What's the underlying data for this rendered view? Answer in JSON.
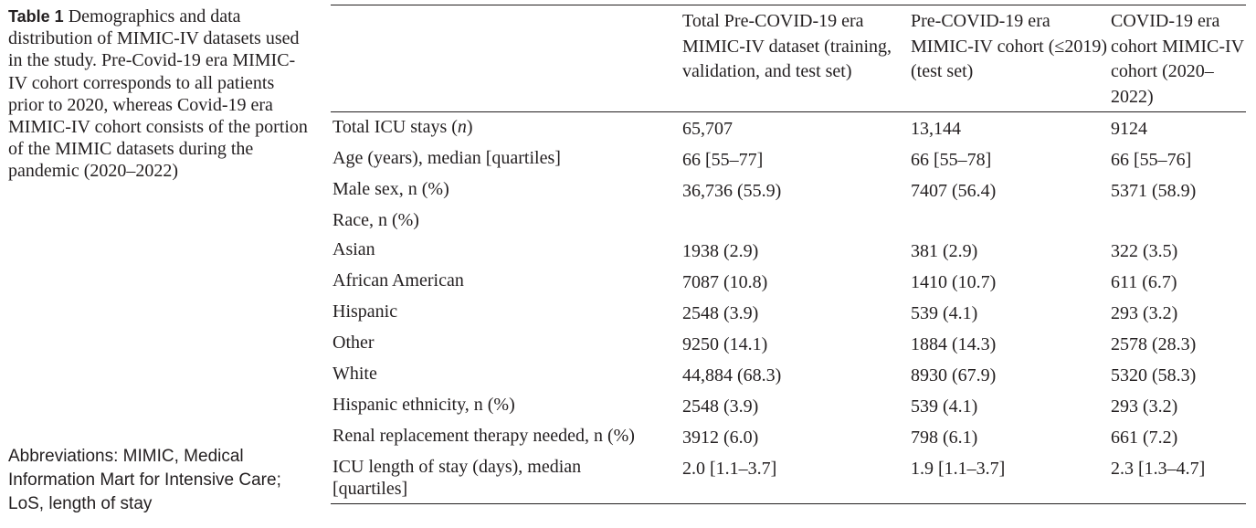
{
  "caption": {
    "label": "Table 1",
    "text": "Demographics and data distribution of MIMIC-IV datasets used in the study. Pre-Covid-19 era MIMIC-IV cohort corresponds to all patients prior to 2020, whereas Covid-19 era MIMIC-IV cohort consists of the portion of the MIMIC datasets during the pandemic (2020–2022)"
  },
  "abbreviations": "Abbreviations: MIMIC, Medical Information Mart for Intensive Care; LoS, length of stay",
  "table": {
    "headers": [
      "",
      "Total Pre-COVID-19 era MIMIC-IV dataset (training, validation, and test set)",
      "Pre-COVID-19 era MIMIC-IV cohort (≤2019) (test set)",
      "COVID-19 era cohort MIMIC-IV cohort (2020–2022)"
    ],
    "rows": [
      {
        "label": "Total ICU stays (n)",
        "values": [
          "65,707",
          "13,144",
          "9124"
        ]
      },
      {
        "label": "Age (years), median [quartiles]",
        "values": [
          "66 [55–77]",
          "66 [55–78]",
          "66 [55–76]"
        ]
      },
      {
        "label": "Male sex, n (%)",
        "values": [
          "36,736 (55.9)",
          "7407 (56.4)",
          "5371 (58.9)"
        ]
      },
      {
        "label": "Race, n (%)",
        "values": [
          "",
          "",
          ""
        ]
      },
      {
        "label": "Asian",
        "values": [
          "1938 (2.9)",
          "381 (2.9)",
          "322 (3.5)"
        ]
      },
      {
        "label": "African American",
        "values": [
          "7087 (10.8)",
          "1410 (10.7)",
          "611 (6.7)"
        ]
      },
      {
        "label": "Hispanic",
        "values": [
          "2548 (3.9)",
          "539 (4.1)",
          "293 (3.2)"
        ]
      },
      {
        "label": "Other",
        "values": [
          "9250 (14.1)",
          "1884 (14.3)",
          "2578 (28.3)"
        ]
      },
      {
        "label": "White",
        "values": [
          "44,884 (68.3)",
          "8930 (67.9)",
          "5320 (58.3)"
        ]
      },
      {
        "label": "Hispanic ethnicity, n (%)",
        "values": [
          "2548 (3.9)",
          "539 (4.1)",
          "293 (3.2)"
        ]
      },
      {
        "label": "Renal replacement therapy needed, n (%)",
        "values": [
          "3912 (6.0)",
          "798 (6.1)",
          "661 (7.2)"
        ]
      },
      {
        "label": "ICU length of stay (days), median [quartiles]",
        "values": [
          "2.0 [1.1–3.7]",
          "1.9 [1.1–3.7]",
          "2.3 [1.3–4.7]"
        ]
      }
    ]
  }
}
